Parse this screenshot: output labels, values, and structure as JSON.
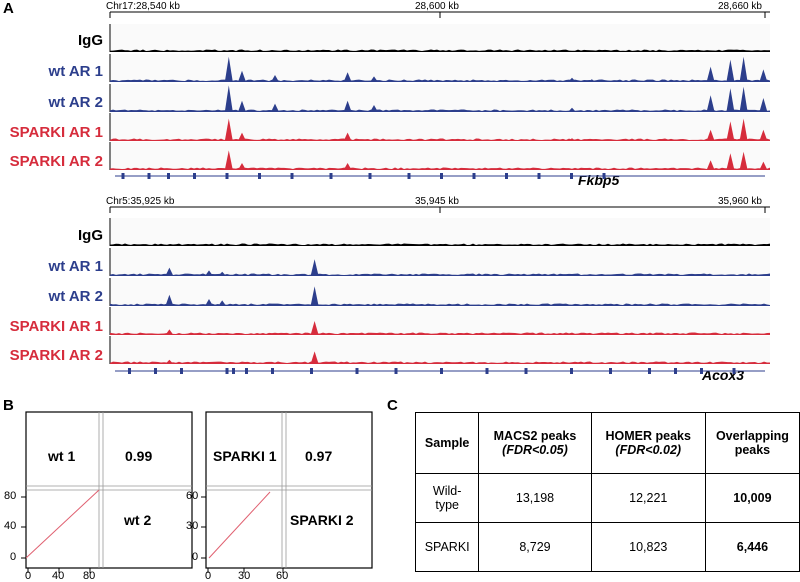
{
  "panelA": {
    "letter": "A",
    "blocks": [
      {
        "coords": [
          "Chr17:28,540 kb",
          "28,600 kb",
          "28,660 kb"
        ],
        "gene": "Fkbp5",
        "tracks": [
          {
            "label": "IgG",
            "scale": "100",
            "color": "#000000"
          },
          {
            "label": "wt AR 1",
            "scale": "100",
            "color": "#2c3e8c"
          },
          {
            "label": "wt AR 2",
            "scale": "100",
            "color": "#2c3e8c"
          },
          {
            "label": "SPARKI AR 1",
            "scale": "100",
            "color": "#d62c3c"
          },
          {
            "label": "SPARKI AR 2",
            "scale": "100",
            "color": "#d62c3c"
          }
        ]
      },
      {
        "coords": [
          "Chr5:35,925 kb",
          "35,945 kb",
          "35,960 kb"
        ],
        "gene": "Acox3",
        "tracks": [
          {
            "label": "IgG",
            "scale": "100",
            "color": "#000000"
          },
          {
            "label": "wt AR 1",
            "scale": "100",
            "color": "#2c3e8c"
          },
          {
            "label": "wt AR 2",
            "scale": "100",
            "color": "#2c3e8c"
          },
          {
            "label": "SPARKI AR 1",
            "scale": "100",
            "color": "#d62c3c"
          },
          {
            "label": "SPARKI AR 2",
            "scale": "100",
            "color": "#d62c3c"
          }
        ]
      }
    ]
  },
  "panelB": {
    "letter": "B",
    "matrices": [
      {
        "label1": "wt 1",
        "label2": "wt 2",
        "correlation": "0.99",
        "yticks": [
          "80",
          "40",
          "0"
        ],
        "xticks": [
          "0",
          "40",
          "80"
        ]
      },
      {
        "label1": "SPARKI 1",
        "label2": "SPARKI 2",
        "correlation": "0.97",
        "yticks": [
          "60",
          "30",
          "0"
        ],
        "xticks": [
          "0",
          "30",
          "60"
        ]
      }
    ]
  },
  "panelC": {
    "letter": "C",
    "headers": {
      "sample": "Sample",
      "macs2": "MACS2 peaks",
      "macs2_fdr": "(FDR<0.05)",
      "homer": "HOMER peaks",
      "homer_fdr": "(FDR<0.02)",
      "overlap1": "Overlapping",
      "overlap2": "peaks"
    },
    "rows": [
      {
        "sample1": "Wild-",
        "sample2": "type",
        "macs2": "13,198",
        "homer": "12,221",
        "overlap": "10,009"
      },
      {
        "sample1": "SPARKI",
        "sample2": "",
        "macs2": "8,729",
        "homer": "10,823",
        "overlap": "6,446"
      }
    ]
  }
}
